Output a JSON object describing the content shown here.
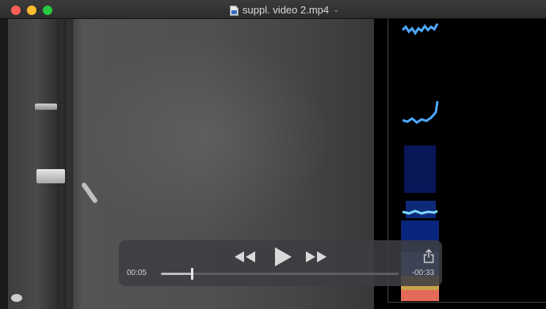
{
  "window": {
    "title": "suppl. video 2.mp4"
  },
  "controls": {
    "elapsed": "00:05",
    "remaining": "-00:33",
    "progress": 0.13
  },
  "colors": {
    "close": "#fe5f57",
    "minimize": "#febc2e",
    "maximize": "#28c840",
    "controls_bg": "#3e3e42"
  }
}
